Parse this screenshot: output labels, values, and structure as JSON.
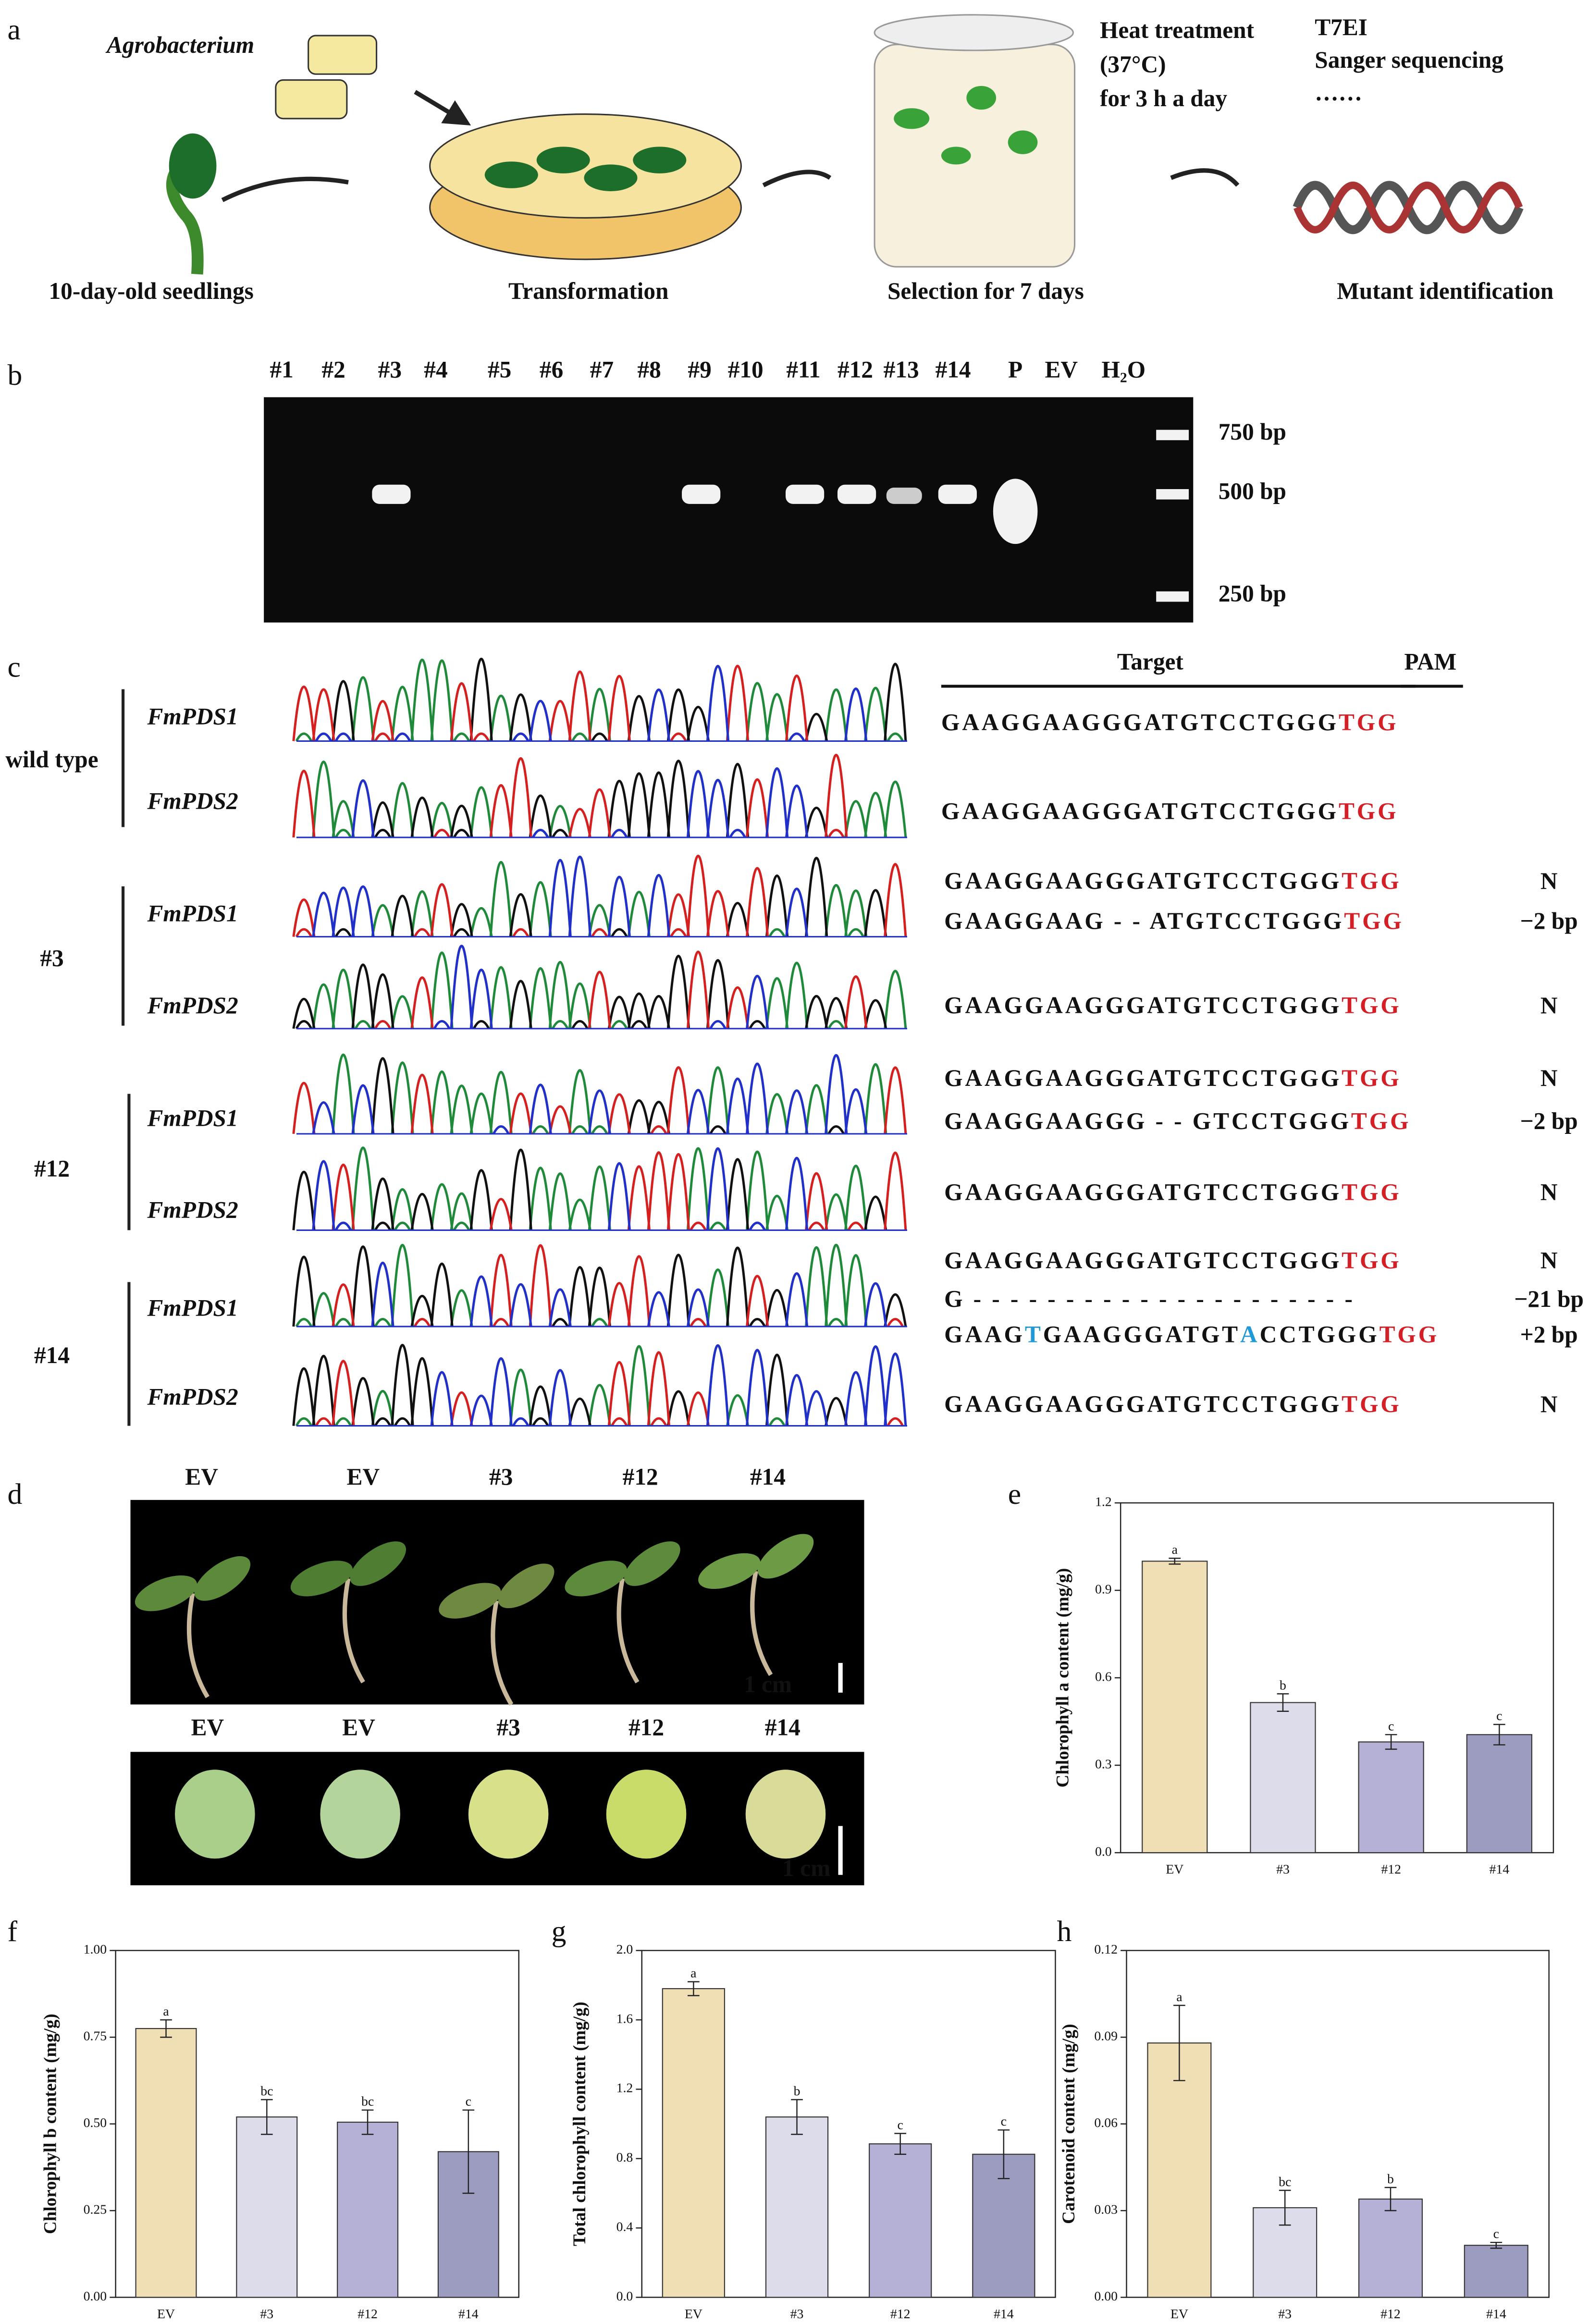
{
  "panel_labels": [
    "a",
    "b",
    "c",
    "d",
    "e",
    "f",
    "g",
    "h"
  ],
  "workflow": {
    "agrobacterium": "Agrobacterium",
    "steps": [
      "10-day-old seedlings",
      "Transformation",
      "Selection for 7 days",
      "Mutant identification"
    ],
    "heat": [
      "Heat treatment",
      "(37°C)",
      "for 3 h a day"
    ],
    "methods": [
      "T7EI",
      "Sanger sequencing",
      "……"
    ]
  },
  "gel": {
    "lanes": [
      "#1",
      "#2",
      "#3",
      "#4",
      "#5",
      "#6",
      "#7",
      "#8",
      "#9",
      "#10",
      "#11",
      "#12",
      "#13",
      "#14",
      "P",
      "EV",
      "H₂O"
    ],
    "markers": [
      "750 bp",
      "500 bp",
      "250 bp"
    ]
  },
  "sequencing": {
    "target": "Target",
    "pam": "PAM",
    "groups": [
      {
        "label": "wild type",
        "genes": [
          "FmPDS1",
          "FmPDS2"
        ]
      },
      {
        "label": "#3",
        "genes": [
          "FmPDS1",
          "FmPDS2"
        ]
      },
      {
        "label": "#12",
        "genes": [
          "FmPDS1",
          "FmPDS2"
        ]
      },
      {
        "label": "#14",
        "genes": [
          "FmPDS1",
          "FmPDS2"
        ]
      }
    ],
    "reads": [
      {
        "pieces": [
          {
            "t": "GAAGGAAGGGATGTCCTGGG"
          },
          {
            "t": "TGG",
            "c": "#d41f26"
          }
        ]
      },
      {
        "pieces": [
          {
            "t": "GAAGGAAGGGATGTCCTGGG"
          },
          {
            "t": "TGG",
            "c": "#d41f26"
          }
        ]
      },
      {
        "pieces": [
          {
            "t": "GAAGGAAGGGATGTCCTGGG"
          },
          {
            "t": "TGG",
            "c": "#d41f26"
          }
        ],
        "note": "N"
      },
      {
        "pieces": [
          {
            "t": "GAAGGAAG - - ATGTCCTGGG"
          },
          {
            "t": "TGG",
            "c": "#d41f26"
          }
        ],
        "note": "−2 bp"
      },
      {
        "pieces": [
          {
            "t": "GAAGGAAGGGATGTCCTGGG"
          },
          {
            "t": "TGG",
            "c": "#d41f26"
          }
        ],
        "note": "N"
      },
      {
        "pieces": [
          {
            "t": "GAAGGAAGGGATGTCCTGGG"
          },
          {
            "t": "TGG",
            "c": "#d41f26"
          }
        ],
        "note": "N"
      },
      {
        "pieces": [
          {
            "t": "GAAGGAAGGG - - GTCCTGGG"
          },
          {
            "t": "TGG",
            "c": "#d41f26"
          }
        ],
        "note": "−2 bp"
      },
      {
        "pieces": [
          {
            "t": "GAAGGAAGGGATGTCCTGGG"
          },
          {
            "t": "TGG",
            "c": "#d41f26"
          }
        ],
        "note": "N"
      },
      {
        "pieces": [
          {
            "t": "GAAGGAAGGGATGTCCTGGG"
          },
          {
            "t": "TGG",
            "c": "#d41f26"
          }
        ],
        "note": "N"
      },
      {
        "pieces": [
          {
            "t": "G - - - - - - - - - - - - - - - - - - - - -"
          }
        ],
        "note": "−21 bp"
      },
      {
        "pieces": [
          {
            "t": "GAAG"
          },
          {
            "t": "T",
            "c": "#1f9ad6"
          },
          {
            "t": "GAAGGGATGT"
          },
          {
            "t": "A",
            "c": "#1f9ad6"
          },
          {
            "t": "CCTGGG"
          },
          {
            "t": "TGG",
            "c": "#d41f26"
          }
        ],
        "note": "+2 bp"
      },
      {
        "pieces": [
          {
            "t": "GAAGGAAGGGATGTCCTGGG"
          },
          {
            "t": "TGG",
            "c": "#d41f26"
          }
        ],
        "note": "N"
      }
    ]
  },
  "photos": {
    "top": [
      "EV",
      "EV",
      "#3",
      "#12",
      "#14"
    ],
    "bottom": [
      "EV",
      "EV",
      "#3",
      "#12",
      "#14"
    ],
    "scale": [
      "1 cm",
      "1 cm"
    ]
  },
  "chart_data": [
    {
      "type": "bar",
      "y_label": "Chlorophyll a content (mg/g)",
      "categories": [
        "EV",
        "#3",
        "#12",
        "#14"
      ],
      "values": [
        1.0,
        0.515,
        0.38,
        0.405
      ],
      "errors": [
        0.01,
        0.03,
        0.025,
        0.035
      ],
      "significance": [
        "a",
        "b",
        "c",
        "c"
      ],
      "colors": [
        "#f0dfb4",
        "#dcdcea",
        "#b5b0d6",
        "#9c9cc0"
      ],
      "ylim": [
        0,
        1.2
      ],
      "yticks": [
        {
          "value": 0,
          "label": "0.0"
        },
        0.3,
        0.6,
        0.9,
        1.2
      ]
    },
    {
      "type": "bar",
      "y_label": "Chlorophyll b content (mg/g)",
      "categories": [
        "EV",
        "#3",
        "#12",
        "#14"
      ],
      "values": [
        0.775,
        0.52,
        0.505,
        0.42
      ],
      "errors": [
        0.025,
        0.05,
        0.035,
        0.12
      ],
      "significance": [
        "a",
        "bc",
        "bc",
        "c"
      ],
      "colors": [
        "#f0dfb4",
        "#dcdcea",
        "#b5b0d6",
        "#9c9cc0"
      ],
      "ylim": [
        0,
        1.0
      ],
      "yticks": [
        {
          "value": 0,
          "label": "0.00"
        },
        0.25,
        {
          "value": 0.5,
          "label": "0.50"
        },
        0.75,
        {
          "value": 1,
          "label": "1.00"
        }
      ]
    },
    {
      "type": "bar",
      "y_label": "Total chlorophyll content (mg/g)",
      "categories": [
        "EV",
        "#3",
        "#12",
        "#14"
      ],
      "values": [
        1.78,
        1.04,
        0.885,
        0.825
      ],
      "errors": [
        0.04,
        0.1,
        0.06,
        0.14
      ],
      "significance": [
        "a",
        "b",
        "c",
        "c"
      ],
      "colors": [
        "#f0dfb4",
        "#dcdcea",
        "#b5b0d6",
        "#9c9cc0"
      ],
      "ylim": [
        0,
        2.0
      ],
      "yticks": [
        {
          "value": 0,
          "label": "0.0"
        },
        0.4,
        0.8,
        1.2,
        1.6,
        {
          "value": 2,
          "label": "2.0"
        }
      ]
    },
    {
      "type": "bar",
      "y_label": "Carotenoid content (mg/g)",
      "categories": [
        "EV",
        "#3",
        "#12",
        "#14"
      ],
      "values": [
        0.088,
        0.031,
        0.034,
        0.018
      ],
      "errors": [
        0.013,
        0.006,
        0.004,
        0.001
      ],
      "significance": [
        "a",
        "bc",
        "b",
        "c"
      ],
      "colors": [
        "#f0dfb4",
        "#dcdcea",
        "#b5b0d6",
        "#9c9cc0"
      ],
      "ylim": [
        0,
        0.12
      ],
      "yticks": [
        {
          "value": 0,
          "label": "0.00"
        },
        0.03,
        0.06,
        0.09,
        0.12
      ]
    }
  ]
}
